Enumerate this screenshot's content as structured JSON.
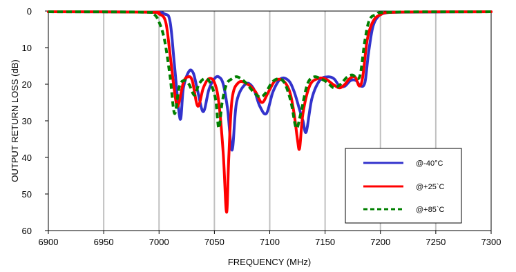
{
  "chart_data": {
    "type": "line",
    "title": "",
    "xlabel": "FREQUENCY (MHz)",
    "ylabel": "OUTPUT RETURN LOSS (dB)",
    "xlim": [
      6900,
      7300
    ],
    "ylim": [
      0,
      60
    ],
    "y_inverted": true,
    "grid": "vertical",
    "legend_position": "bottom-right",
    "xticks": [
      6900,
      6950,
      7000,
      7050,
      7100,
      7150,
      7200,
      7250,
      7300
    ],
    "yticks": [
      0,
      10,
      20,
      30,
      40,
      50,
      60
    ],
    "series": [
      {
        "name": "@-40°C",
        "color": "#3333cc",
        "style": "solid",
        "x": [
          6900,
          6990,
          7005,
          7010,
          7014,
          7019,
          7022,
          7027,
          7031,
          7035,
          7040,
          7045,
          7050,
          7054,
          7058,
          7062,
          7066,
          7070,
          7078,
          7085,
          7091,
          7097,
          7103,
          7110,
          7117,
          7122,
          7127,
          7130,
          7133,
          7138,
          7145,
          7152,
          7158,
          7163,
          7168,
          7173,
          7178,
          7182,
          7186,
          7189,
          7193,
          7198,
          7205,
          7220,
          7300
        ],
        "y": [
          0.2,
          0.3,
          0.8,
          3,
          15,
          29.5,
          21,
          16.5,
          17,
          22,
          27.5,
          21.5,
          18.5,
          18,
          20,
          27,
          38,
          25,
          20,
          21,
          26,
          28,
          22,
          18.5,
          19,
          22,
          27,
          30,
          33,
          24,
          19,
          18,
          18.5,
          20.5,
          20.5,
          19,
          19,
          20.5,
          19.5,
          12,
          4.5,
          1.5,
          0.5,
          0.3,
          0.2
        ]
      },
      {
        "name": "@+25`C",
        "color": "#ff0000",
        "style": "solid",
        "x": [
          6900,
          6990,
          7000,
          7006,
          7010,
          7014,
          7017,
          7022,
          7026,
          7030,
          7035,
          7040,
          7045,
          7050,
          7054,
          7058,
          7061,
          7063,
          7066,
          7072,
          7080,
          7087,
          7093,
          7099,
          7105,
          7112,
          7118,
          7122,
          7125,
          7127,
          7130,
          7136,
          7143,
          7150,
          7157,
          7163,
          7168,
          7172,
          7177,
          7181,
          7184,
          7188,
          7193,
          7200,
          7215,
          7300
        ],
        "y": [
          0.2,
          0.3,
          0.8,
          3,
          12,
          22,
          26,
          19.5,
          18,
          19,
          26,
          21,
          18.5,
          19.5,
          25,
          39,
          55,
          40,
          24,
          19.5,
          20,
          22,
          25,
          22,
          19,
          19,
          22,
          28,
          35,
          37.5,
          28,
          20.5,
          18.5,
          18.5,
          20,
          21,
          20,
          18.5,
          18,
          20.5,
          18,
          8,
          3,
          1,
          0.3,
          0.2
        ]
      },
      {
        "name": "@+85`C",
        "color": "#008000",
        "style": "dashed",
        "x": [
          6900,
          6985,
          6995,
          7000,
          7005,
          7010,
          7014,
          7018,
          7022,
          7027,
          7032,
          7036,
          7041,
          7046,
          7051,
          7054,
          7057,
          7061,
          7066,
          7071,
          7078,
          7085,
          7091,
          7096,
          7102,
          7108,
          7113,
          7117,
          7120,
          7124,
          7128,
          7134,
          7140,
          7146,
          7152,
          7158,
          7164,
          7170,
          7175,
          7179,
          7182,
          7186,
          7190,
          7196,
          7210,
          7300
        ],
        "y": [
          0.2,
          0.3,
          0.8,
          3,
          8,
          18,
          28,
          21,
          19,
          20,
          23,
          20,
          18.5,
          19.5,
          24,
          32,
          25,
          20,
          18.5,
          18,
          19.5,
          22,
          23.5,
          22.5,
          19.5,
          18.5,
          19.5,
          22.5,
          26,
          32,
          28,
          20,
          18,
          18.5,
          19.5,
          21,
          20,
          18,
          17.5,
          18.5,
          17,
          8,
          2.5,
          1,
          0.3,
          0.2
        ]
      }
    ]
  }
}
